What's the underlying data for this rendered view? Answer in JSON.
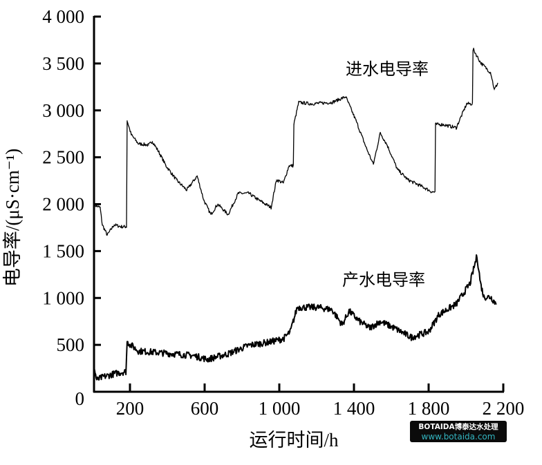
{
  "chart_data": {
    "type": "line",
    "xlabel": "运行时间/h",
    "ylabel": "电导率/(μS·cm⁻¹)",
    "xlim": [
      0,
      2200
    ],
    "ylim": [
      0,
      4000
    ],
    "x_ticks": [
      200,
      600,
      1000,
      1400,
      1800,
      2200
    ],
    "x_tick_labels": [
      "200",
      "600",
      "1 000",
      "1 400",
      "1 800",
      "2 200"
    ],
    "y_ticks": [
      0,
      500,
      1000,
      1500,
      2000,
      2500,
      3000,
      3500,
      4000
    ],
    "y_tick_labels": [
      "0",
      "500",
      "1 000",
      "1 500",
      "2 000",
      "2 500",
      "3 000",
      "3 500",
      "4 000"
    ],
    "grid": false,
    "series": [
      {
        "name": "进水电导率",
        "color": "#000000",
        "x": [
          10,
          40,
          52,
          78,
          115,
          152,
          178,
          185,
          207,
          245,
          300,
          320,
          355,
          393,
          448,
          504,
          560,
          596,
          633,
          670,
          726,
          780,
          837,
          893,
          956,
          985,
          1022,
          1052,
          1078,
          1104,
          1170,
          1282,
          1356,
          1411,
          1467,
          1504,
          1541,
          1578,
          1633,
          1689,
          1763,
          1819,
          1837,
          1874,
          1948,
          2004,
          2041,
          2078,
          2133,
          2152,
          2170
        ],
        "y": [
          1990,
          1965,
          1780,
          1670,
          1780,
          1760,
          1760,
          2890,
          2740,
          2645,
          2630,
          2670,
          2555,
          2410,
          2260,
          2150,
          2300,
          2040,
          1890,
          2000,
          1890,
          2115,
          2115,
          2040,
          1965,
          2260,
          2225,
          2410,
          2850,
          3085,
          3070,
          3085,
          3145,
          2890,
          2595,
          2425,
          2760,
          2630,
          2370,
          2260,
          2190,
          2130,
          2850,
          2850,
          2815,
          3070,
          3645,
          3510,
          3400,
          3220,
          3290
        ]
      },
      {
        "name": "产水电导率",
        "color": "#000000",
        "x": [
          10,
          22,
          59,
          133,
          178,
          185,
          245,
          430,
          541,
          615,
          726,
          837,
          948,
          1022,
          1059,
          1096,
          1207,
          1282,
          1337,
          1374,
          1430,
          1485,
          1541,
          1615,
          1707,
          1800,
          1856,
          1948,
          2022,
          2059,
          2078,
          2096,
          2133,
          2163
        ],
        "y": [
          235,
          125,
          160,
          200,
          215,
          530,
          435,
          405,
          385,
          345,
          405,
          495,
          530,
          565,
          640,
          900,
          900,
          875,
          715,
          860,
          750,
          680,
          750,
          680,
          580,
          640,
          825,
          935,
          1155,
          1450,
          1155,
          1010,
          1010,
          935
        ]
      }
    ]
  },
  "watermark": {
    "line1": "BOTAIDA博泰达水处理",
    "line2": "www.botaida.com"
  }
}
